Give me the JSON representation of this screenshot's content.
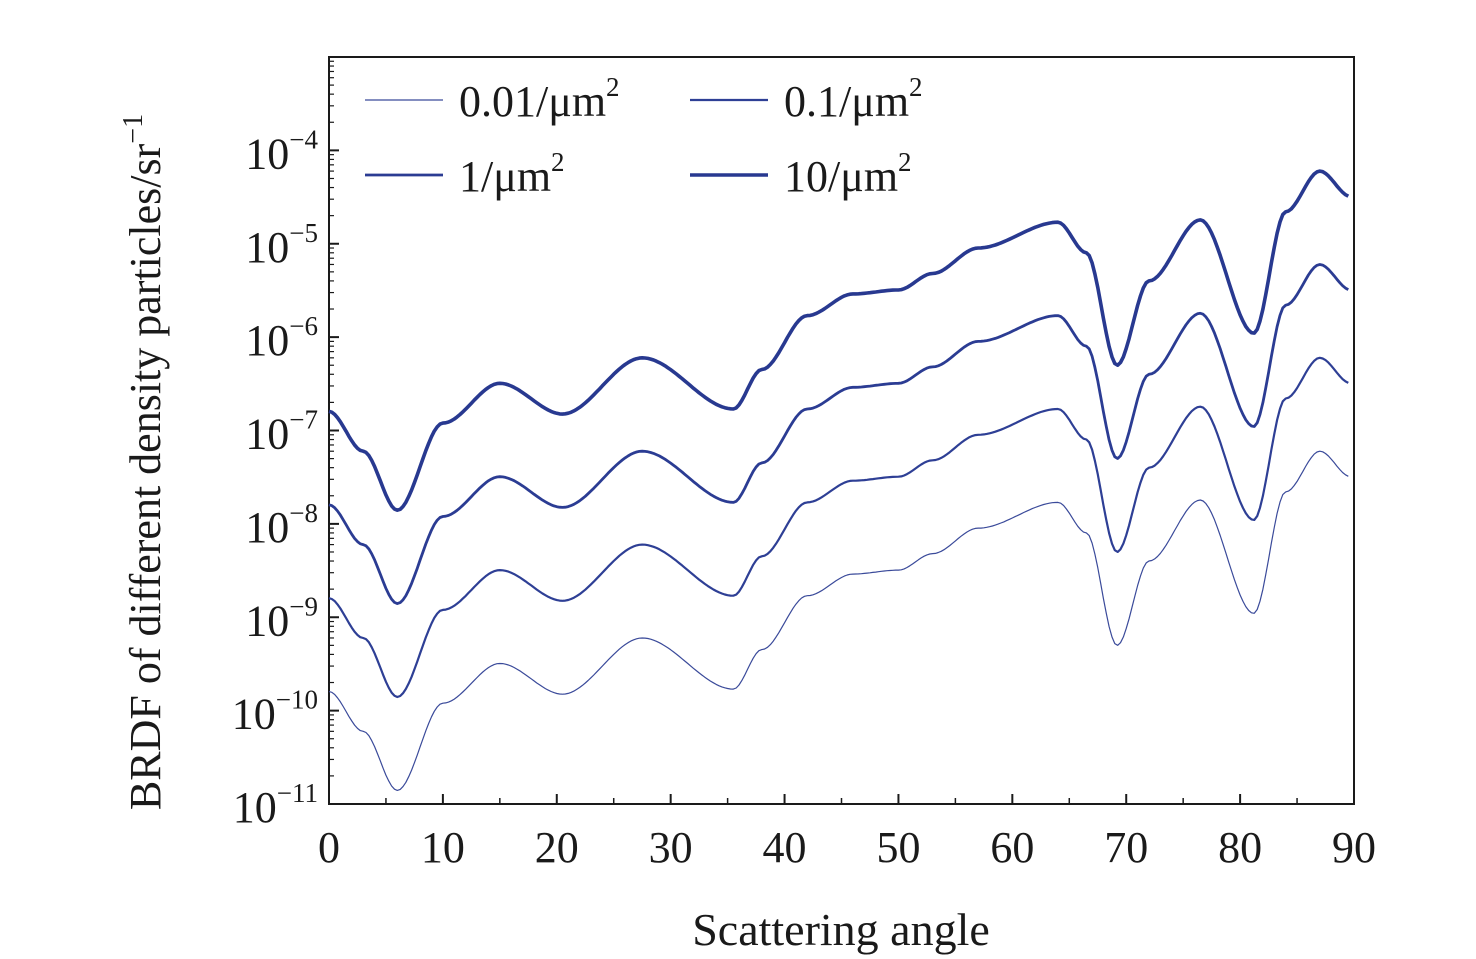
{
  "chart_data": {
    "type": "line",
    "xlabel": "Scattering angle",
    "ylabel": "BRDF of different density particles/sr",
    "ylabel_sup": "−1",
    "x_scale": "linear",
    "y_scale": "log",
    "xlim": [
      0,
      90
    ],
    "ylim": [
      1e-11,
      0.001
    ],
    "x_ticks": [
      0,
      10,
      20,
      30,
      40,
      50,
      60,
      70,
      80,
      90
    ],
    "x_tick_labels": [
      "0",
      "10",
      "20",
      "30",
      "40",
      "50",
      "60",
      "70",
      "80",
      "90"
    ],
    "y_ticks": [
      1e-11,
      1e-10,
      1e-09,
      1e-08,
      1e-07,
      1e-06,
      1e-05,
      0.0001
    ],
    "y_tick_labels": [
      {
        "base": "10",
        "exp": "−11"
      },
      {
        "base": "10",
        "exp": "−10"
      },
      {
        "base": "10",
        "exp": "−9"
      },
      {
        "base": "10",
        "exp": "−8"
      },
      {
        "base": "10",
        "exp": "−7"
      },
      {
        "base": "10",
        "exp": "−6"
      },
      {
        "base": "10",
        "exp": "−5"
      },
      {
        "base": "10",
        "exp": "−4"
      }
    ],
    "grid": false,
    "legend_position": "top-left",
    "x": [
      0,
      3,
      6,
      10,
      15,
      20.5,
      27.5,
      35.5,
      38,
      42,
      46,
      50,
      53,
      57,
      64,
      66.5,
      69.2,
      72,
      76.5,
      81.2,
      84,
      87,
      89.7
    ],
    "base_values": [
      1.6e-10,
      6e-11,
      1.4e-11,
      1.2e-10,
      3.2e-10,
      1.5e-10,
      6e-10,
      1.7e-10,
      4.5e-10,
      1.7e-09,
      2.9e-09,
      3.2e-09,
      4.8e-09,
      9e-09,
      1.7e-08,
      8e-09,
      5e-10,
      4e-09,
      1.8e-08,
      1.1e-09,
      2.2e-08,
      6e-08,
      3.2e-08
    ],
    "series": [
      {
        "name": "0.01/μm",
        "name_sup": "2",
        "multiplier": 1,
        "color": "#3a4a9a",
        "stroke_width": 1.2
      },
      {
        "name": "0.1/μm",
        "name_sup": "2",
        "multiplier": 10,
        "color": "#2e3f95",
        "stroke_width": 2.2
      },
      {
        "name": "1/μm",
        "name_sup": "2",
        "multiplier": 100,
        "color": "#2b3c93",
        "stroke_width": 2.8
      },
      {
        "name": "10/μm",
        "name_sup": "2",
        "multiplier": 1000,
        "color": "#283990",
        "stroke_width": 3.6
      }
    ]
  }
}
